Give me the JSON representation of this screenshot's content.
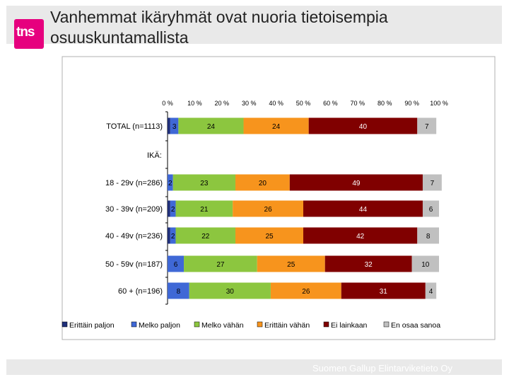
{
  "slide": {
    "title": "Vanhemmat ikäryhmät ovat nuoria tietoisempia osuuskuntamallista",
    "logo_text": "tns",
    "footer_text": "Suomen Gallup Elintarviketieto Oy"
  },
  "chart_data": {
    "type": "bar",
    "orientation": "horizontal",
    "stacked": "percent",
    "x_ticks": [
      "0 %",
      "10 %",
      "20 %",
      "30 %",
      "40 %",
      "50 %",
      "60 %",
      "70 %",
      "80 %",
      "90 %",
      "100 %"
    ],
    "xlim": [
      0,
      100
    ],
    "categories": [
      "TOTAL (n=1113)",
      "IKÄ:",
      "18 - 29v (n=286)",
      "30 - 39v (n=209)",
      "40 - 49v (n=236)",
      "50 - 59v (n=187)",
      "60 + (n=196)"
    ],
    "series": [
      {
        "name": "Erittäin paljon",
        "color": "#1f2f7a",
        "values": [
          1,
          null,
          0,
          1,
          1,
          0,
          0
        ],
        "labels": [
          "1",
          "",
          "0",
          "1",
          "1",
          "",
          ""
        ]
      },
      {
        "name": "Melko paljon",
        "color": "#3f68d6",
        "values": [
          3,
          null,
          2,
          2,
          2,
          6,
          8
        ],
        "labels": [
          "3",
          "",
          "2",
          "2",
          "2",
          "6",
          "8"
        ]
      },
      {
        "name": "Melko vähän",
        "color": "#8cc63f",
        "values": [
          24,
          null,
          23,
          21,
          22,
          27,
          30
        ],
        "labels": [
          "24",
          "",
          "23",
          "21",
          "22",
          "27",
          "30"
        ]
      },
      {
        "name": "Erittäin vähän",
        "color": "#f7941d",
        "values": [
          24,
          null,
          20,
          26,
          25,
          25,
          26
        ],
        "labels": [
          "24",
          "",
          "20",
          "26",
          "25",
          "25",
          "26"
        ]
      },
      {
        "name": "Ei lainkaan",
        "color": "#800000",
        "values": [
          40,
          null,
          49,
          44,
          42,
          32,
          31
        ],
        "labels": [
          "40",
          "",
          "49",
          "44",
          "42",
          "32",
          "31"
        ]
      },
      {
        "name": "En osaa sanoa",
        "color": "#c0c0c0",
        "values": [
          7,
          null,
          7,
          6,
          8,
          10,
          4
        ],
        "labels": [
          "7",
          "",
          "7",
          "6",
          "8",
          "10",
          "4"
        ]
      }
    ],
    "legend_position": "bottom",
    "grid": false
  }
}
